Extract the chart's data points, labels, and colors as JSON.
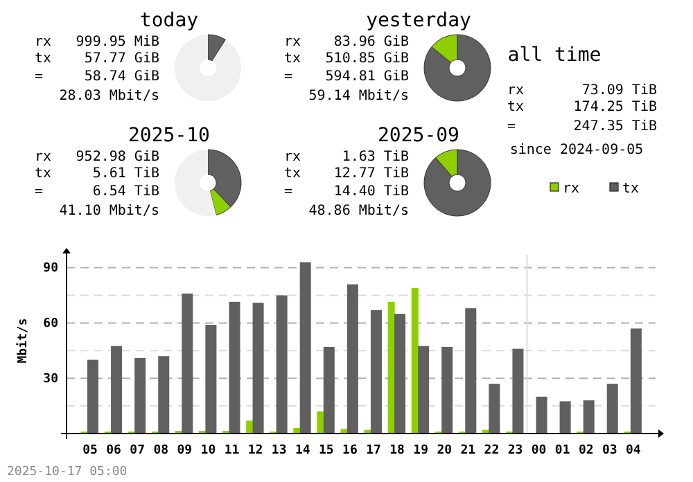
{
  "chart_data": [
    {
      "type": "donut",
      "title": "today",
      "categories": [
        null,
        null,
        null
      ],
      "values": [
        8.8,
        0.2,
        91
      ],
      "colors": [
        "#606060",
        "#8fcf00",
        "#f0f0f0"
      ],
      "annotations": [
        "rx",
        "999.95 MiB",
        "tx",
        "57.77 GiB",
        "=",
        "58.74 GiB",
        "28.03 Mbit/s"
      ]
    },
    {
      "type": "donut",
      "title": "yesterday",
      "categories": [
        null,
        null
      ],
      "values": [
        85.9,
        14.1
      ],
      "colors": [
        "#606060",
        "#8fcf00"
      ],
      "annotations": [
        "rx",
        "83.96 GiB",
        "tx",
        "510.85 GiB",
        "=",
        "594.81 GiB",
        "59.14 Mbit/s"
      ]
    },
    {
      "type": "donut",
      "title": "2025-10",
      "categories": [
        null,
        null,
        null
      ],
      "values": [
        38,
        8,
        54
      ],
      "colors": [
        "#606060",
        "#8fcf00",
        "#f0f0f0"
      ],
      "annotations": [
        "rx",
        "952.98 GiB",
        "tx",
        "5.61 TiB",
        "=",
        "6.54 TiB",
        "41.10 Mbit/s"
      ]
    },
    {
      "type": "donut",
      "title": "2025-09",
      "categories": [
        null,
        null
      ],
      "values": [
        88.7,
        11.3
      ],
      "colors": [
        "#606060",
        "#8fcf00"
      ],
      "annotations": [
        "rx",
        "1.63 TiB",
        "tx",
        "12.77 TiB",
        "=",
        "14.40 TiB",
        "48.86 Mbit/s"
      ]
    },
    {
      "type": "other",
      "title": "all time",
      "annotations": [
        "rx",
        "73.09 TiB",
        "tx",
        "174.25 TiB",
        "=",
        "247.35 TiB",
        "since 2024-09-05"
      ]
    },
    {
      "type": "bar",
      "ylabel": "Mbit/s",
      "categories": [
        "05",
        "06",
        "07",
        "08",
        "09",
        "10",
        "11",
        "12",
        "13",
        "14",
        "15",
        "16",
        "17",
        "18",
        "19",
        "20",
        "21",
        "22",
        "23",
        "00",
        "01",
        "02",
        "03",
        "04"
      ],
      "series": [
        {
          "name": "rx",
          "color": "#8fcf00",
          "values": [
            1,
            1,
            1,
            1,
            1.5,
            1.5,
            1.5,
            7,
            1,
            3,
            12,
            2.5,
            2,
            71.5,
            79,
            1,
            1,
            2,
            1,
            0,
            0,
            1,
            0,
            1
          ]
        },
        {
          "name": "tx",
          "color": "#606060",
          "values": [
            40,
            47.5,
            41,
            42,
            76,
            59,
            71.5,
            71,
            75,
            93,
            47,
            81,
            67,
            65,
            47.5,
            47,
            68,
            27,
            46,
            20,
            17.5,
            18,
            27,
            57
          ]
        }
      ],
      "ylim": [
        0,
        100
      ],
      "yticks": [
        {
          "value": 15,
          "label": null
        },
        30,
        {
          "value": 45,
          "label": null
        },
        60,
        {
          "value": 75,
          "label": null
        },
        90
      ],
      "grid": "y",
      "legend": "top right",
      "ref_lines": [
        {
          "axis": "x",
          "value": "00"
        }
      ],
      "annotations": [
        "2025-10-17 05:00"
      ]
    }
  ]
}
